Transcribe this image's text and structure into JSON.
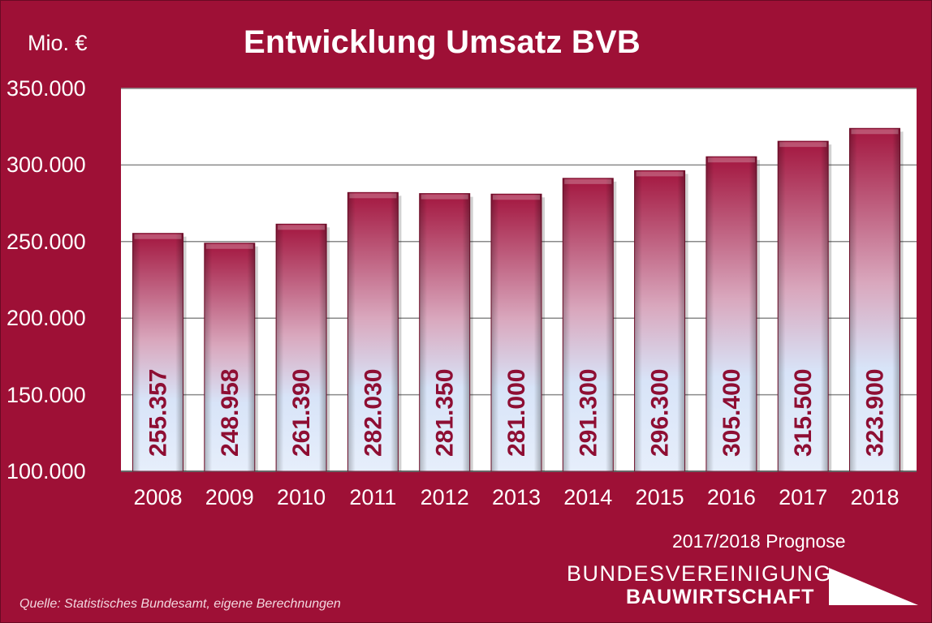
{
  "header": {
    "unit": "Mio. €",
    "title": "Entwicklung Umsatz BVB"
  },
  "chart_data": {
    "type": "bar",
    "title": "Entwicklung Umsatz BVB",
    "ylabel": "Mio. €",
    "xlabel": "",
    "ylim": [
      100000,
      350000
    ],
    "yticks": [
      "100.000",
      "150.000",
      "200.000",
      "250.000",
      "300.000",
      "350.000"
    ],
    "grid": true,
    "categories": [
      "2008",
      "2009",
      "2010",
      "2011",
      "2012",
      "2013",
      "2014",
      "2015",
      "2016",
      "2017",
      "2018"
    ],
    "values": [
      255357,
      248958,
      261390,
      282030,
      281350,
      281000,
      291300,
      296300,
      305400,
      315500,
      323900
    ],
    "value_labels": [
      "255.357",
      "248.958",
      "261.390",
      "282.030",
      "281.350",
      "281.000",
      "291.300",
      "296.300",
      "305.400",
      "315.500",
      "323.900"
    ],
    "colors": {
      "bar_top": "#a3163f",
      "bar_bottom": "#d8e4f8",
      "label": "#8e0e33",
      "background": "#9e1036"
    }
  },
  "footer": {
    "prognose_note": "2017/2018 Prognose",
    "source": "Quelle: Statistisches Bundesamt, eigene Berechnungen",
    "logo_line1": "BUNDESVEREINIGUNG",
    "logo_line2": "BAUWIRTSCHAFT"
  }
}
